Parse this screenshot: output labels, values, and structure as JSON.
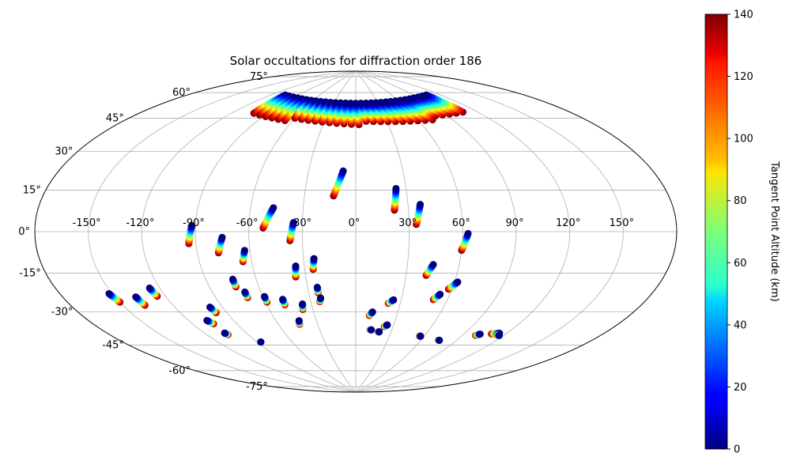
{
  "chart_data": {
    "type": "scatter",
    "title": "Solar occultations for diffraction order 186",
    "projection": "aitoff-like",
    "grid": true,
    "lon_ticks": [
      -150,
      -120,
      -90,
      -60,
      -30,
      0,
      30,
      60,
      90,
      120,
      150
    ],
    "lon_tick_labels": [
      "-150°",
      "-120°",
      "-90°",
      "-60°",
      "-30°",
      "0°",
      "30°",
      "60°",
      "90°",
      "120°",
      "150°"
    ],
    "lat_ticks": [
      -75,
      -60,
      -45,
      -30,
      -15,
      0,
      15,
      30,
      45,
      60,
      75
    ],
    "lat_tick_labels": [
      "-75°",
      "-60°",
      "-45°",
      "-30°",
      "-15°",
      "0°",
      "15°",
      "30°",
      "45°",
      "60°",
      "75°"
    ],
    "colorbar": {
      "label": "Tangent Point Altitude (km)",
      "range": [
        0,
        140
      ],
      "ticks": [
        0,
        20,
        40,
        60,
        80,
        100,
        120,
        140
      ],
      "tick_labels": [
        "0",
        "20",
        "40",
        "60",
        "80",
        "100",
        "120",
        "140"
      ],
      "colormap": "jet"
    },
    "tracks": [
      {
        "start": [
          -13,
          20
        ],
        "end": [
          -8,
          34
        ]
      },
      {
        "start": [
          22,
          12
        ],
        "end": [
          24,
          24
        ]
      },
      {
        "start": [
          34,
          4
        ],
        "end": [
          37,
          15
        ]
      },
      {
        "start": [
          -52,
          2
        ],
        "end": [
          -47,
          13
        ]
      },
      {
        "start": [
          -37,
          -5
        ],
        "end": [
          -35,
          5
        ]
      },
      {
        "start": [
          -94,
          -6
        ],
        "end": [
          -92,
          3
        ]
      },
      {
        "start": [
          -78,
          -11
        ],
        "end": [
          -75,
          -3
        ]
      },
      {
        "start": [
          -65,
          -16
        ],
        "end": [
          -63,
          -10
        ]
      },
      {
        "start": [
          60,
          -10
        ],
        "end": [
          63,
          -1
        ]
      },
      {
        "start": [
          -36,
          -25
        ],
        "end": [
          -35,
          -19
        ]
      },
      {
        "start": [
          -25,
          -21
        ],
        "end": [
          -24,
          -15
        ]
      },
      {
        "start": [
          42,
          -24
        ],
        "end": [
          45,
          -18
        ]
      },
      {
        "start": [
          -74,
          -29
        ],
        "end": [
          -74,
          -25
        ]
      },
      {
        "start": [
          -70,
          -35
        ],
        "end": [
          -70,
          -32
        ]
      },
      {
        "start": [
          -59,
          -38
        ],
        "end": [
          -59,
          -35
        ]
      },
      {
        "start": [
          -24,
          -34
        ],
        "end": [
          -24,
          -31
        ]
      },
      {
        "start": [
          -24,
          -39
        ],
        "end": [
          -23,
          -37
        ]
      },
      {
        "start": [
          -48,
          -40
        ],
        "end": [
          -48,
          -37
        ]
      },
      {
        "start": [
          -37,
          -43
        ],
        "end": [
          -36,
          -40
        ]
      },
      {
        "start": [
          -150,
          -30
        ],
        "end": [
          -152,
          -26
        ]
      },
      {
        "start": [
          -137,
          -33
        ],
        "end": [
          -138,
          -29
        ]
      },
      {
        "start": [
          -125,
          -30
        ],
        "end": [
          -126,
          -26
        ]
      },
      {
        "start": [
          -97,
          -41
        ],
        "end": [
          -98,
          -38
        ]
      },
      {
        "start": [
          -106,
          -46
        ],
        "end": [
          -108,
          -44
        ]
      },
      {
        "start": [
          -44,
          -51
        ],
        "end": [
          -43,
          -49
        ]
      },
      {
        "start": [
          -105,
          -52
        ],
        "end": [
          -106,
          -51
        ]
      },
      {
        "start": [
          -87,
          -58
        ],
        "end": [
          -87,
          -58
        ]
      },
      {
        "start": [
          10,
          -47
        ],
        "end": [
          12,
          -45
        ]
      },
      {
        "start": [
          22,
          -40
        ],
        "end": [
          25,
          -38
        ]
      },
      {
        "start": [
          12,
          -55
        ],
        "end": [
          13,
          -55
        ]
      },
      {
        "start": [
          19,
          -56
        ],
        "end": [
          20,
          -56
        ]
      },
      {
        "start": [
          23,
          -53
        ],
        "end": [
          25,
          -52
        ]
      },
      {
        "start": [
          51,
          -37
        ],
        "end": [
          54,
          -34
        ]
      },
      {
        "start": [
          58,
          -31
        ],
        "end": [
          62,
          -27
        ]
      },
      {
        "start": [
          56,
          -57
        ],
        "end": [
          57,
          -57
        ]
      },
      {
        "start": [
          75,
          -58
        ],
        "end": [
          76,
          -58
        ]
      },
      {
        "start": [
          100,
          -53
        ],
        "end": [
          102,
          -52
        ]
      },
      {
        "start": [
          110,
          -51
        ],
        "end": [
          115,
          -50
        ]
      },
      {
        "start": [
          115,
          -51
        ],
        "end": [
          117,
          -51
        ]
      }
    ],
    "polar_clusters": [
      {
        "lon_range": [
          -105,
          105
        ],
        "lat_range": [
          60,
          72
        ]
      }
    ]
  }
}
